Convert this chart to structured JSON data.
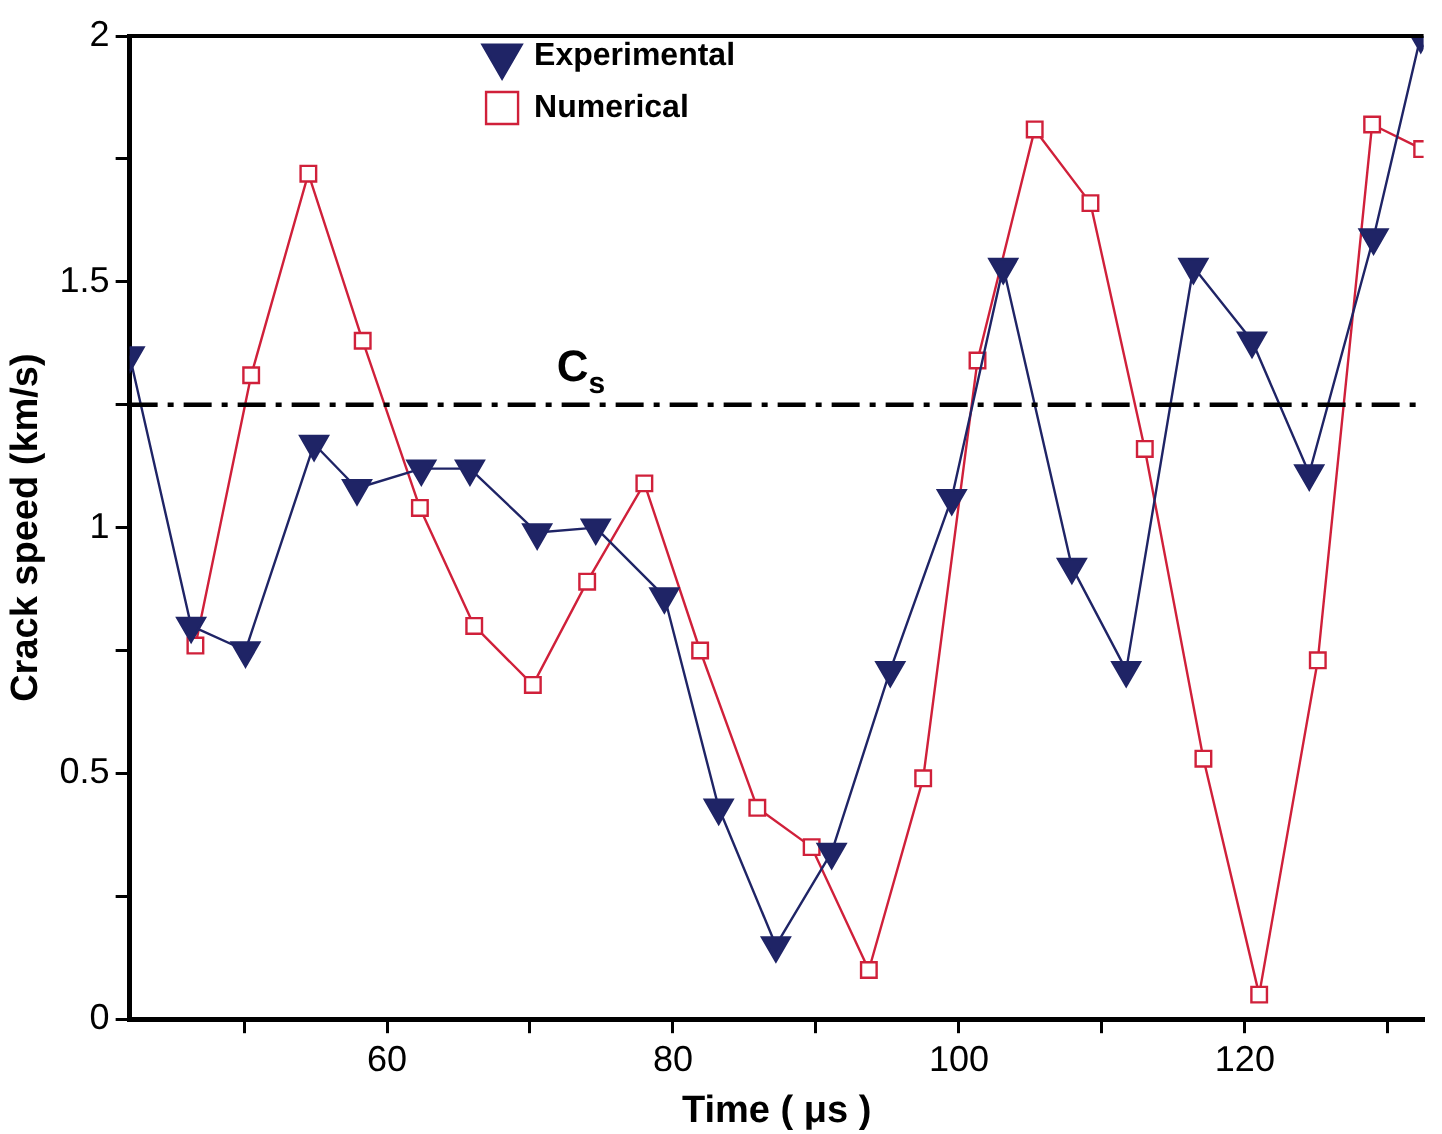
{
  "chart_data": {
    "type": "line",
    "xlabel": "Time ( μs )",
    "ylabel": "Crack speed (km/s)",
    "xlim": [
      42,
      132.5
    ],
    "xticks": [
      {
        "value": 50,
        "label": null
      },
      60,
      {
        "value": 70,
        "label": null
      },
      80,
      {
        "value": 90,
        "label": null
      },
      100,
      {
        "value": 110,
        "label": null
      },
      120,
      {
        "value": 130,
        "label": null
      }
    ],
    "ylim": [
      0,
      2
    ],
    "yticks": [
      0,
      {
        "value": 0.25,
        "label": null
      },
      0.5,
      {
        "value": 0.75,
        "label": null
      },
      1,
      {
        "value": 1.25,
        "label": null
      },
      1.5,
      {
        "value": 1.75,
        "label": null
      },
      2
    ],
    "grid": false,
    "legend": "top left",
    "line_style": "solid",
    "ref_lines": [
      {
        "axis": "y",
        "value": 1.25,
        "label": "C$_{s}$",
        "color": "#000000",
        "line_style": "dashed"
      }
    ],
    "series": [
      {
        "name": "Experimental",
        "color": "#1f2466",
        "marker": "triangle",
        "x": [
          42,
          46.3,
          50.1,
          54.9,
          57.9,
          62.4,
          65.8,
          70.5,
          74.6,
          79.4,
          83.2,
          87.2,
          91.1,
          95.2,
          99.5,
          103.1,
          107.9,
          111.7,
          116.4,
          120.5,
          124.5,
          129.0,
          132.3
        ],
        "values": [
          1.35,
          0.8,
          0.75,
          1.17,
          1.08,
          1.12,
          1.12,
          0.99,
          1.0,
          0.86,
          0.43,
          0.15,
          0.34,
          0.71,
          1.06,
          1.53,
          0.92,
          0.71,
          1.53,
          1.38,
          1.11,
          1.59,
          2.0
        ]
      },
      {
        "name": "Numerical",
        "color": "#d0203a",
        "marker": "square",
        "x": [
          46.6,
          50.5,
          54.5,
          58.3,
          62.3,
          66.1,
          70.2,
          74.0,
          78.0,
          81.9,
          85.9,
          89.7,
          93.7,
          97.5,
          101.3,
          105.3,
          109.2,
          113.0,
          117.1,
          121.0,
          125.1,
          128.9,
          132.4
        ],
        "values": [
          0.76,
          1.31,
          1.72,
          1.38,
          1.04,
          0.8,
          0.68,
          0.89,
          1.09,
          0.75,
          0.43,
          0.35,
          0.1,
          0.49,
          1.34,
          1.81,
          1.66,
          1.16,
          0.53,
          0.05,
          0.73,
          1.82,
          1.77
        ]
      }
    ]
  }
}
